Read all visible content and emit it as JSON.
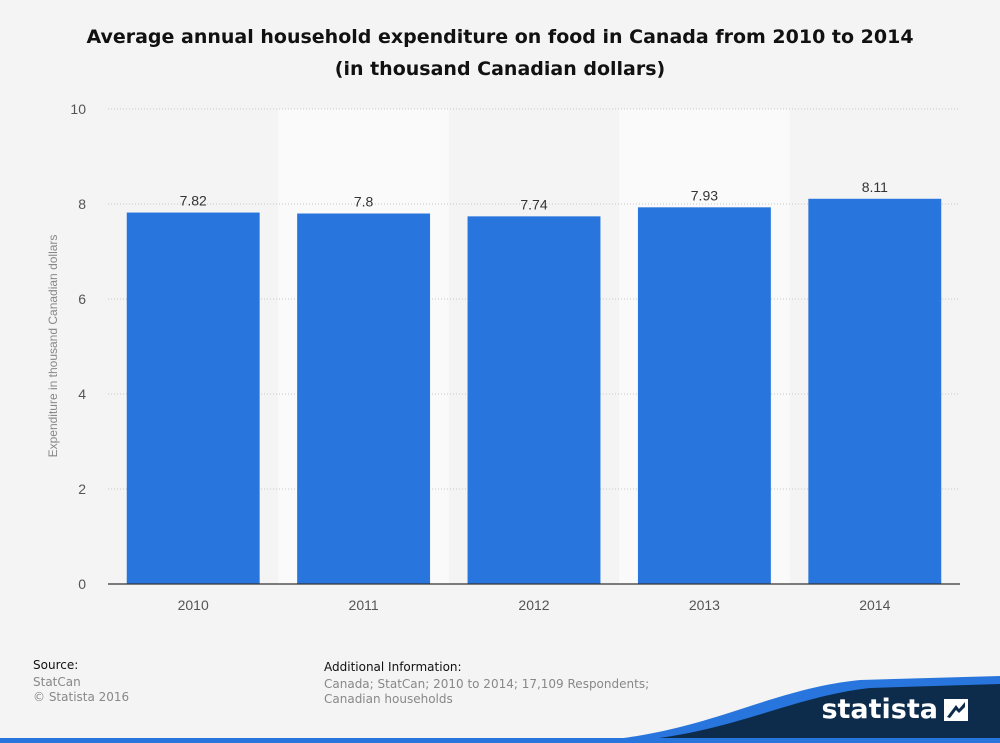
{
  "chart_data": {
    "type": "bar",
    "title": "Average annual household expenditure on food in Canada from 2010 to 2014",
    "subtitle": "(in thousand Canadian dollars)",
    "xlabel": "",
    "ylabel": "Expenditure in thousand Canadian dollars",
    "categories": [
      "2010",
      "2011",
      "2012",
      "2013",
      "2014"
    ],
    "values": [
      7.82,
      7.8,
      7.74,
      7.93,
      8.11
    ],
    "value_labels": [
      "7.82",
      "7.8",
      "7.74",
      "7.93",
      "8.11"
    ],
    "ylim": [
      0,
      10
    ],
    "yticks": [
      0,
      2,
      4,
      6,
      8,
      10
    ],
    "grid": true,
    "bar_color": "#2876dd"
  },
  "footer": {
    "source_heading": "Source:",
    "source_lines": [
      "StatCan",
      "© Statista 2016"
    ],
    "additional_heading": "Additional Information:",
    "additional_text": "Canada; StatCan; 2010 to 2014; 17,109 Respondents; Canadian households"
  },
  "brand": {
    "name": "statista",
    "dark_color": "#0d2b4a",
    "accent_color": "#2876dd"
  }
}
